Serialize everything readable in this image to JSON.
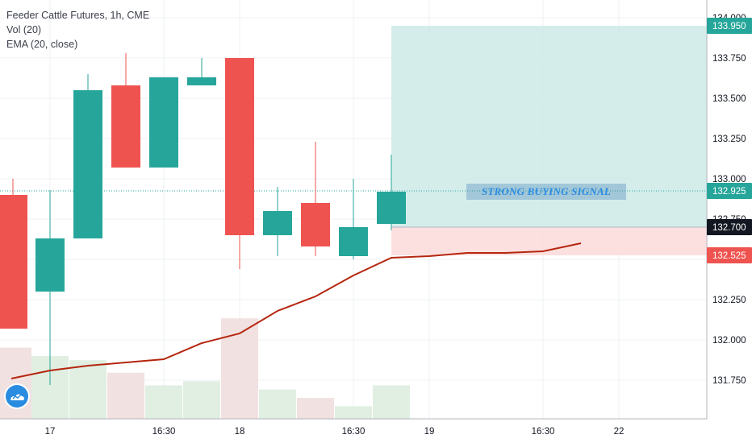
{
  "legend": {
    "symbol": "Feeder Cattle Futures, 1h, CME",
    "vol": "Vol (20)",
    "ema": "EMA (20, close)"
  },
  "annotation": {
    "text": "STRONG BUYING SIGNAL"
  },
  "colors": {
    "up": "#26a69a",
    "down": "#ef5350",
    "ema": "#b5260e",
    "vol_up": "#e0efe2",
    "vol_down": "#f2e1e1",
    "profit_zone": "#cdeae8",
    "loss_zone": "#fcdcdc",
    "tag_profit": "#26a69a",
    "tag_last": "#26a69a",
    "tag_entry": "#131722",
    "tag_stop": "#ef5350"
  },
  "chart_data": {
    "type": "candlestick",
    "y_ticks": [
      "131.750",
      "132.000",
      "132.250",
      "132.500",
      "132.750",
      "133.000",
      "133.250",
      "133.500",
      "133.750",
      "134.000"
    ],
    "x_ticks": [
      "17",
      "16:30",
      "18",
      "16:30",
      "19",
      "16:30",
      "22"
    ],
    "ylim": [
      131.45,
      134.05
    ],
    "candles": [
      {
        "open": 132.9,
        "high": 133.0,
        "low": 132.07,
        "close": 132.07,
        "volume": 0.17
      },
      {
        "open": 132.3,
        "high": 132.93,
        "low": 131.72,
        "close": 132.63,
        "volume": 0.15
      },
      {
        "open": 132.63,
        "high": 133.65,
        "low": 132.63,
        "close": 133.55,
        "volume": 0.14
      },
      {
        "open": 133.58,
        "high": 133.78,
        "low": 133.07,
        "close": 133.07,
        "volume": 0.11
      },
      {
        "open": 133.07,
        "high": 133.63,
        "low": 133.07,
        "close": 133.63,
        "volume": 0.08
      },
      {
        "open": 133.58,
        "high": 133.75,
        "low": 133.58,
        "close": 133.63,
        "volume": 0.09
      },
      {
        "open": 133.75,
        "high": 133.75,
        "low": 132.44,
        "close": 132.65,
        "volume": 0.24
      },
      {
        "open": 132.65,
        "high": 132.95,
        "low": 132.52,
        "close": 132.8,
        "volume": 0.07
      },
      {
        "open": 132.85,
        "high": 133.23,
        "low": 132.52,
        "close": 132.58,
        "volume": 0.05
      },
      {
        "open": 132.52,
        "high": 133.0,
        "low": 132.5,
        "close": 132.7,
        "volume": 0.03
      },
      {
        "open": 132.72,
        "high": 133.15,
        "low": 132.68,
        "close": 132.92,
        "volume": 0.08
      }
    ],
    "ema": [
      131.76,
      131.81,
      131.84,
      131.86,
      131.88,
      131.98,
      132.04,
      132.18,
      132.27,
      132.4,
      132.51,
      132.52,
      132.54,
      132.54,
      132.55,
      132.6
    ],
    "position": {
      "type": "long",
      "entry": 132.7,
      "target": 133.95,
      "stop": 132.525
    },
    "price_tags": [
      {
        "label": "133.950",
        "value": 133.95,
        "color_key": "tag_profit"
      },
      {
        "label": "132.925",
        "value": 132.925,
        "color_key": "tag_last"
      },
      {
        "label": "132.700",
        "value": 132.7,
        "color_key": "tag_entry"
      },
      {
        "label": "132.525",
        "value": 132.525,
        "color_key": "tag_stop"
      }
    ],
    "last_price": 132.925
  }
}
